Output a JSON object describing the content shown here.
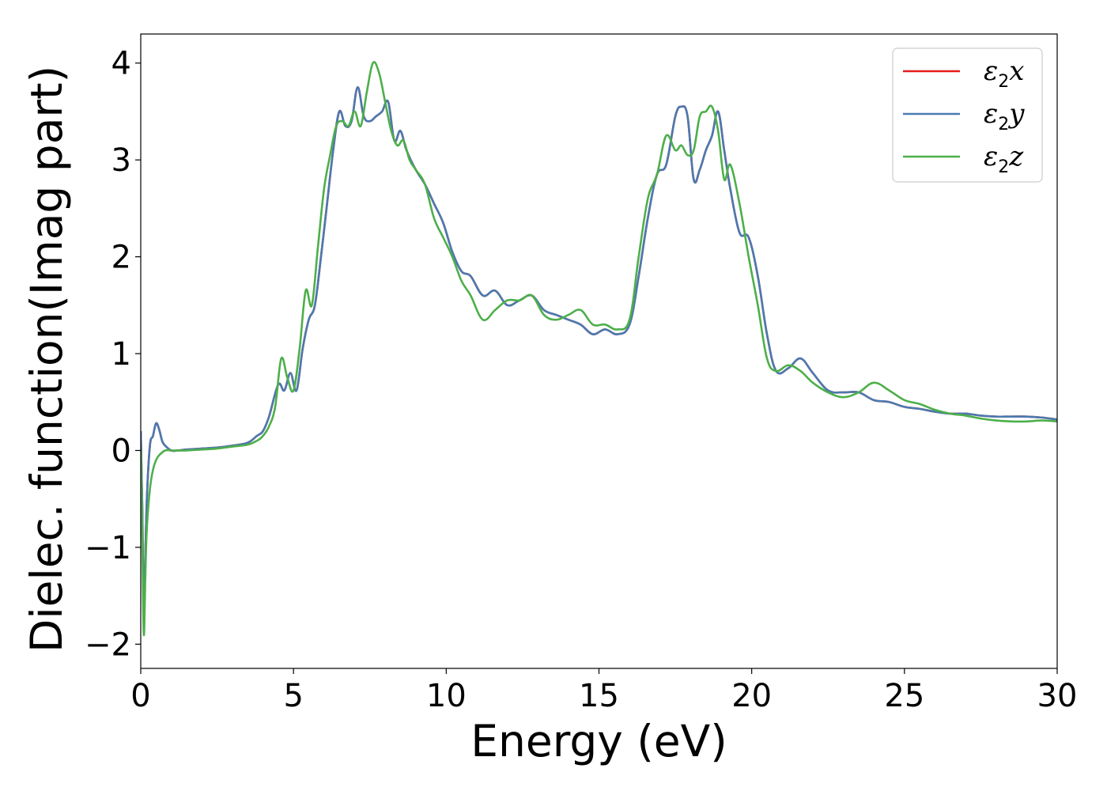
{
  "chart_data": {
    "type": "line",
    "title": "",
    "xlabel": "Energy (eV)",
    "ylabel": "Dielec. function(Imag part)",
    "xlim": [
      0,
      30
    ],
    "ylim": [
      -2.25,
      4.3
    ],
    "x_ticks": [
      0,
      5,
      10,
      15,
      20,
      25,
      30
    ],
    "y_ticks": [
      -2,
      -1,
      0,
      1,
      2,
      3,
      4
    ],
    "x_tick_labels": [
      "0",
      "5",
      "10",
      "15",
      "20",
      "25",
      "30"
    ],
    "y_tick_labels": [
      "−2",
      "−1",
      "0",
      "1",
      "2",
      "3",
      "4"
    ],
    "grid": false,
    "legend_position": "top-right",
    "series": [
      {
        "name": "ε₂x",
        "name_base": "ε",
        "name_sub": "2",
        "name_var": "x",
        "color": "#e41a1c",
        "x": [
          0.0,
          0.05,
          0.1,
          0.2,
          0.3,
          0.4,
          0.5,
          0.6,
          0.7,
          0.8,
          1.0,
          1.2,
          1.5,
          2.0,
          2.5,
          3.0,
          3.5,
          3.8,
          4.0,
          4.2,
          4.5,
          4.7,
          4.9,
          5.1,
          5.3,
          5.5,
          5.7,
          5.9,
          6.1,
          6.3,
          6.5,
          6.7,
          6.9,
          7.1,
          7.3,
          7.5,
          7.7,
          7.9,
          8.1,
          8.3,
          8.5,
          8.7,
          9.0,
          9.3,
          9.6,
          9.9,
          10.2,
          10.5,
          10.8,
          11.2,
          11.6,
          12.0,
          12.4,
          12.8,
          13.2,
          13.6,
          14.0,
          14.4,
          14.8,
          15.2,
          15.6,
          16.0,
          16.3,
          16.6,
          16.9,
          17.2,
          17.5,
          17.7,
          17.9,
          18.1,
          18.3,
          18.5,
          18.7,
          18.9,
          19.1,
          19.3,
          19.6,
          19.9,
          20.2,
          20.5,
          20.8,
          21.2,
          21.6,
          22.0,
          22.5,
          23.0,
          23.5,
          24.0,
          24.5,
          25.0,
          25.5,
          26.0,
          26.5,
          27.0,
          27.5,
          28.0,
          28.5,
          29.0,
          29.5,
          30.0
        ],
        "values": [
          0.2,
          -0.6,
          -1.55,
          -0.5,
          0.05,
          0.15,
          0.28,
          0.22,
          0.1,
          0.05,
          0.0,
          0.0,
          0.01,
          0.02,
          0.03,
          0.05,
          0.08,
          0.15,
          0.2,
          0.35,
          0.68,
          0.62,
          0.8,
          0.62,
          1.05,
          1.35,
          1.5,
          2.0,
          2.55,
          3.1,
          3.5,
          3.35,
          3.4,
          3.75,
          3.45,
          3.4,
          3.45,
          3.5,
          3.6,
          3.2,
          3.3,
          3.1,
          2.9,
          2.75,
          2.55,
          2.35,
          2.05,
          1.85,
          1.8,
          1.6,
          1.65,
          1.5,
          1.55,
          1.6,
          1.45,
          1.4,
          1.35,
          1.3,
          1.2,
          1.25,
          1.2,
          1.3,
          1.8,
          2.4,
          2.85,
          2.95,
          3.45,
          3.55,
          3.45,
          2.8,
          2.9,
          3.1,
          3.25,
          3.5,
          3.1,
          2.7,
          2.25,
          2.2,
          1.8,
          1.2,
          0.82,
          0.85,
          0.95,
          0.8,
          0.62,
          0.6,
          0.6,
          0.52,
          0.5,
          0.45,
          0.43,
          0.4,
          0.38,
          0.38,
          0.36,
          0.35,
          0.35,
          0.35,
          0.34,
          0.32
        ]
      },
      {
        "name": "ε₂y",
        "name_base": "ε",
        "name_sub": "2",
        "name_var": "y",
        "color": "#4a7ab0",
        "x": [
          0.0,
          0.05,
          0.1,
          0.2,
          0.3,
          0.4,
          0.5,
          0.6,
          0.7,
          0.8,
          1.0,
          1.2,
          1.5,
          2.0,
          2.5,
          3.0,
          3.5,
          3.8,
          4.0,
          4.2,
          4.5,
          4.7,
          4.9,
          5.1,
          5.3,
          5.5,
          5.7,
          5.9,
          6.1,
          6.3,
          6.5,
          6.7,
          6.9,
          7.1,
          7.3,
          7.5,
          7.7,
          7.9,
          8.1,
          8.3,
          8.5,
          8.7,
          9.0,
          9.3,
          9.6,
          9.9,
          10.2,
          10.5,
          10.8,
          11.2,
          11.6,
          12.0,
          12.4,
          12.8,
          13.2,
          13.6,
          14.0,
          14.4,
          14.8,
          15.2,
          15.6,
          16.0,
          16.3,
          16.6,
          16.9,
          17.2,
          17.5,
          17.7,
          17.9,
          18.1,
          18.3,
          18.5,
          18.7,
          18.9,
          19.1,
          19.3,
          19.6,
          19.9,
          20.2,
          20.5,
          20.8,
          21.2,
          21.6,
          22.0,
          22.5,
          23.0,
          23.5,
          24.0,
          24.5,
          25.0,
          25.5,
          26.0,
          26.5,
          27.0,
          27.5,
          28.0,
          28.5,
          29.0,
          29.5,
          30.0
        ],
        "values": [
          0.2,
          -0.6,
          -1.55,
          -0.5,
          0.05,
          0.15,
          0.28,
          0.22,
          0.1,
          0.05,
          0.0,
          0.0,
          0.01,
          0.02,
          0.03,
          0.05,
          0.08,
          0.15,
          0.2,
          0.35,
          0.68,
          0.62,
          0.8,
          0.62,
          1.05,
          1.35,
          1.5,
          2.0,
          2.55,
          3.1,
          3.5,
          3.35,
          3.4,
          3.75,
          3.45,
          3.4,
          3.45,
          3.5,
          3.6,
          3.2,
          3.3,
          3.1,
          2.9,
          2.75,
          2.55,
          2.35,
          2.05,
          1.85,
          1.8,
          1.6,
          1.65,
          1.5,
          1.55,
          1.6,
          1.45,
          1.4,
          1.35,
          1.3,
          1.2,
          1.25,
          1.2,
          1.3,
          1.8,
          2.4,
          2.85,
          2.95,
          3.45,
          3.55,
          3.45,
          2.8,
          2.9,
          3.1,
          3.25,
          3.5,
          3.1,
          2.7,
          2.25,
          2.2,
          1.8,
          1.2,
          0.82,
          0.85,
          0.95,
          0.8,
          0.62,
          0.6,
          0.6,
          0.52,
          0.5,
          0.45,
          0.43,
          0.4,
          0.38,
          0.38,
          0.36,
          0.35,
          0.35,
          0.35,
          0.34,
          0.32
        ]
      },
      {
        "name": "ε₂z",
        "name_base": "ε",
        "name_sub": "2",
        "name_var": "z",
        "color": "#4daf4a",
        "x": [
          0.0,
          0.05,
          0.1,
          0.15,
          0.2,
          0.3,
          0.4,
          0.5,
          0.6,
          0.8,
          1.0,
          1.2,
          1.5,
          2.0,
          2.5,
          3.0,
          3.5,
          3.8,
          4.0,
          4.2,
          4.4,
          4.6,
          4.8,
          5.0,
          5.2,
          5.4,
          5.6,
          5.8,
          6.0,
          6.2,
          6.4,
          6.6,
          6.8,
          7.0,
          7.2,
          7.4,
          7.6,
          7.8,
          8.0,
          8.2,
          8.4,
          8.6,
          8.8,
          9.0,
          9.3,
          9.6,
          9.9,
          10.2,
          10.5,
          10.8,
          11.2,
          11.6,
          12.0,
          12.4,
          12.8,
          13.2,
          13.6,
          14.0,
          14.4,
          14.8,
          15.2,
          15.6,
          16.0,
          16.3,
          16.6,
          16.9,
          17.2,
          17.5,
          17.7,
          17.9,
          18.1,
          18.3,
          18.5,
          18.7,
          18.9,
          19.1,
          19.3,
          19.6,
          19.9,
          20.2,
          20.5,
          20.8,
          21.2,
          21.6,
          22.0,
          22.5,
          23.0,
          23.5,
          24.0,
          24.5,
          25.0,
          25.5,
          26.0,
          26.5,
          27.0,
          27.5,
          28.0,
          28.5,
          29.0,
          29.5,
          30.0
        ],
        "values": [
          0.0,
          -0.9,
          -1.9,
          -1.3,
          -0.8,
          -0.4,
          -0.2,
          -0.1,
          -0.05,
          0.0,
          0.0,
          0.0,
          0.0,
          0.01,
          0.02,
          0.04,
          0.06,
          0.1,
          0.15,
          0.25,
          0.45,
          0.95,
          0.75,
          0.62,
          1.05,
          1.65,
          1.5,
          2.1,
          2.7,
          3.05,
          3.35,
          3.4,
          3.35,
          3.5,
          3.35,
          3.7,
          4.0,
          3.9,
          3.6,
          3.3,
          3.15,
          3.2,
          3.0,
          2.9,
          2.75,
          2.4,
          2.2,
          2.0,
          1.75,
          1.6,
          1.35,
          1.45,
          1.55,
          1.55,
          1.6,
          1.4,
          1.35,
          1.4,
          1.45,
          1.3,
          1.3,
          1.25,
          1.35,
          2.0,
          2.6,
          2.85,
          3.25,
          3.1,
          3.15,
          3.05,
          3.1,
          3.45,
          3.5,
          3.55,
          3.3,
          2.8,
          2.95,
          2.55,
          2.0,
          1.5,
          0.95,
          0.82,
          0.88,
          0.82,
          0.7,
          0.6,
          0.55,
          0.6,
          0.7,
          0.62,
          0.52,
          0.48,
          0.42,
          0.38,
          0.36,
          0.33,
          0.31,
          0.3,
          0.3,
          0.31,
          0.3
        ]
      }
    ]
  }
}
